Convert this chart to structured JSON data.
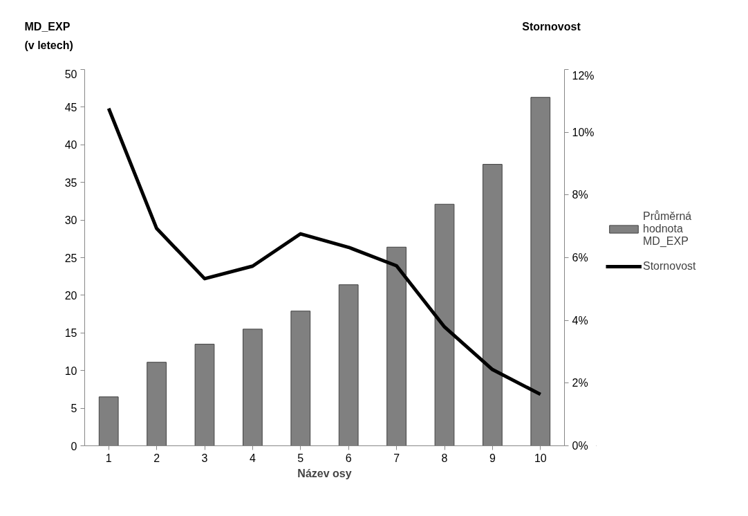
{
  "chart_data": {
    "type": "bar",
    "xlabel": "Název osy",
    "ylabel": "MD_EXP (v letech)",
    "y2label": "Stornovost",
    "categories": [
      "1",
      "2",
      "3",
      "4",
      "5",
      "6",
      "7",
      "8",
      "9",
      "10"
    ],
    "series": [
      {
        "name": "Průměrná hodnota MD_EXP",
        "color": "#808080",
        "values": [
          6.5,
          11.1,
          13.5,
          15.5,
          17.9,
          21.4,
          26.4,
          32.1,
          37.4,
          46.3
        ]
      },
      {
        "name": "Stornovost",
        "type": "line",
        "axis": "y2",
        "color": "#000000",
        "values": [
          10.76,
          6.93,
          5.33,
          5.73,
          6.76,
          6.33,
          5.74,
          3.79,
          2.43,
          1.64
        ]
      }
    ],
    "ylim": [
      0,
      50
    ],
    "yticks": [
      0,
      5,
      10,
      15,
      20,
      25,
      30,
      35,
      40,
      45,
      50
    ],
    "y2lim": [
      0,
      12
    ],
    "y2ticks": [
      {
        "value": 0,
        "label": "0%"
      },
      {
        "value": 2,
        "label": "2%"
      },
      {
        "value": 4,
        "label": "4%"
      },
      {
        "value": 6,
        "label": "6%"
      },
      {
        "value": 8,
        "label": "8%"
      },
      {
        "value": 10,
        "label": "10%"
      },
      {
        "value": 12,
        "label": "12%"
      }
    ],
    "grid": false,
    "legend": "right"
  }
}
